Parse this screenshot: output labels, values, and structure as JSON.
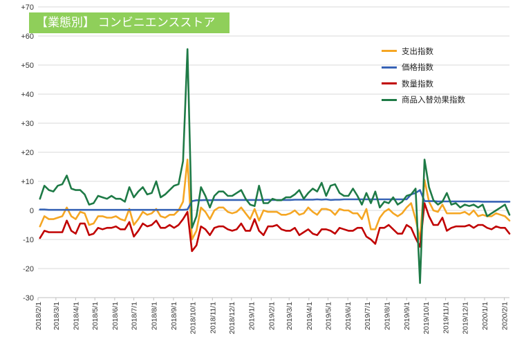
{
  "chart_data": {
    "type": "line",
    "title": "【業態別】 コンビニエンスストア",
    "xlabel": "",
    "ylabel": "",
    "ylim": [
      -30,
      70
    ],
    "yticks": [
      -30,
      -20,
      -10,
      0,
      10,
      20,
      30,
      40,
      50,
      60,
      70
    ],
    "ytick_labels": [
      "-30",
      "-20",
      "-10",
      "0",
      "+10",
      "+20",
      "+30",
      "+40",
      "+50",
      "+60",
      "+70"
    ],
    "xlim": [
      "2018-02-01",
      "2020-02-09"
    ],
    "xtick_labels": [
      "2018/2/1",
      "2018/3/1",
      "2018/4/1",
      "2018/5/1",
      "2018/6/1",
      "2018/7/1",
      "2018/8/1",
      "2018/9/1",
      "2018/10/1",
      "2018/11/1",
      "2018/12/1",
      "2019/1/1",
      "2019/2/1",
      "2019/3/1",
      "2019/4/1",
      "2019/5/1",
      "2019/6/1",
      "2019/7/1",
      "2019/8/1",
      "2019/9/1",
      "2019/10/1",
      "2019/11/1",
      "2019/12/1",
      "2020/1/1",
      "2020/2/1"
    ],
    "grid": "horizontal",
    "legend_position": "top-right",
    "x": [
      "2018-02-04",
      "2018-02-11",
      "2018-02-18",
      "2018-02-25",
      "2018-03-04",
      "2018-03-11",
      "2018-03-18",
      "2018-03-25",
      "2018-04-01",
      "2018-04-08",
      "2018-04-15",
      "2018-04-22",
      "2018-04-29",
      "2018-05-06",
      "2018-05-13",
      "2018-05-20",
      "2018-05-27",
      "2018-06-03",
      "2018-06-10",
      "2018-06-17",
      "2018-06-24",
      "2018-07-01",
      "2018-07-08",
      "2018-07-15",
      "2018-07-22",
      "2018-07-29",
      "2018-08-05",
      "2018-08-12",
      "2018-08-19",
      "2018-08-26",
      "2018-09-02",
      "2018-09-09",
      "2018-09-16",
      "2018-09-23",
      "2018-09-30",
      "2018-10-07",
      "2018-10-14",
      "2018-10-21",
      "2018-10-28",
      "2018-11-04",
      "2018-11-11",
      "2018-11-18",
      "2018-11-25",
      "2018-12-02",
      "2018-12-09",
      "2018-12-16",
      "2018-12-23",
      "2018-12-30",
      "2019-01-06",
      "2019-01-13",
      "2019-01-20",
      "2019-01-27",
      "2019-02-03",
      "2019-02-10",
      "2019-02-17",
      "2019-02-24",
      "2019-03-03",
      "2019-03-10",
      "2019-03-17",
      "2019-03-24",
      "2019-03-31",
      "2019-04-07",
      "2019-04-14",
      "2019-04-21",
      "2019-04-28",
      "2019-05-05",
      "2019-05-12",
      "2019-05-19",
      "2019-05-26",
      "2019-06-02",
      "2019-06-09",
      "2019-06-16",
      "2019-06-23",
      "2019-06-30",
      "2019-07-07",
      "2019-07-14",
      "2019-07-21",
      "2019-07-28",
      "2019-08-04",
      "2019-08-11",
      "2019-08-18",
      "2019-08-25",
      "2019-09-01",
      "2019-09-08",
      "2019-09-15",
      "2019-09-22",
      "2019-09-29",
      "2019-10-06",
      "2019-10-13",
      "2019-10-20",
      "2019-10-27",
      "2019-11-03",
      "2019-11-10",
      "2019-11-17",
      "2019-11-24",
      "2019-12-01",
      "2019-12-08",
      "2019-12-15",
      "2019-12-22",
      "2019-12-29",
      "2020-01-05",
      "2020-01-12",
      "2020-01-19",
      "2020-01-26",
      "2020-02-02",
      "2020-02-09"
    ],
    "series": [
      {
        "name": "支出指数",
        "color": "#f5a623",
        "values": [
          -5.5,
          -2,
          -3,
          -3,
          -2.5,
          -2,
          1,
          -2,
          -3,
          -0.5,
          -1,
          -5,
          -4.5,
          -2,
          -2,
          -2.5,
          -2.5,
          -2,
          -3,
          -3.5,
          0.5,
          -5,
          -3,
          -0.5,
          -1.5,
          -1,
          0.5,
          -2,
          -2.5,
          -1.5,
          -1.5,
          0,
          3,
          17.5,
          -10,
          -7,
          1,
          -0.5,
          -3,
          0,
          1,
          1,
          -0.5,
          -1,
          -0.5,
          1,
          -1,
          -3,
          0.5,
          -3.5,
          0,
          -0.5,
          -0.5,
          -0.5,
          -1.5,
          -1.5,
          -1,
          0,
          -1.5,
          -1,
          1,
          -0.5,
          -1.5,
          0.5,
          0.5,
          0,
          -1.5,
          0.5,
          0,
          0,
          -1,
          -1,
          -3,
          0.5,
          -6.5,
          -6.5,
          -2.5,
          -0.5,
          0.5,
          -1,
          -2,
          -1,
          1,
          2.5,
          -3,
          -10,
          10.5,
          3,
          0,
          -0.5,
          2,
          -1,
          -1,
          -1,
          -1,
          -0.5,
          -1.5,
          0,
          -2,
          -1.5,
          -2,
          -2,
          -1,
          -1.5,
          -2,
          -3.5
        ]
      },
      {
        "name": "価格指数",
        "color": "#3763b5",
        "values": [
          0.3,
          0.3,
          0.2,
          0.2,
          0.2,
          0.2,
          0.2,
          0.2,
          0.2,
          0.2,
          0.2,
          0.2,
          0.2,
          0.2,
          0.2,
          0.2,
          0.2,
          0.2,
          0.2,
          0.2,
          0.2,
          0.2,
          0.2,
          0.2,
          0.2,
          0.2,
          0.2,
          0.2,
          0.2,
          0.2,
          0.2,
          0.2,
          0.2,
          0.3,
          3.2,
          3.5,
          3.5,
          3.6,
          3.5,
          3.6,
          3.6,
          3.6,
          3.6,
          3.6,
          3.6,
          3.6,
          3.6,
          3.6,
          3.6,
          3.6,
          3.6,
          3.7,
          3.6,
          3.6,
          3.6,
          3.6,
          3.6,
          3.7,
          3.7,
          3.7,
          3.7,
          3.7,
          3.8,
          3.7,
          3.8,
          3.6,
          3.7,
          3.7,
          3.8,
          3.8,
          3.8,
          3.8,
          3.8,
          3.8,
          3.8,
          3.8,
          3.8,
          3.8,
          3.8,
          3.8,
          3.8,
          3.8,
          3.8,
          5.5,
          6,
          7,
          3.2,
          3.2,
          3.2,
          3.1,
          3.1,
          3.1,
          3.1,
          3.1,
          3.1,
          3.1,
          3.1,
          3.1,
          3.1,
          3,
          3,
          3,
          3,
          3,
          3,
          3
        ]
      },
      {
        "name": "数量指数",
        "color": "#c00000",
        "values": [
          -9.5,
          -7,
          -7.5,
          -7.5,
          -7.5,
          -7.5,
          -3.5,
          -7,
          -8,
          -4.5,
          -4.5,
          -8.5,
          -8,
          -6,
          -6.5,
          -6,
          -6,
          -5.5,
          -6.5,
          -6.5,
          -4,
          -9,
          -7,
          -4.5,
          -5.5,
          -5,
          -3.5,
          -6,
          -6,
          -5,
          -6,
          -5,
          -3,
          -0.5,
          -14,
          -12,
          -5.5,
          -6.5,
          -8.5,
          -6,
          -5.5,
          -5.5,
          -6.5,
          -7,
          -6.5,
          -4.5,
          -7,
          -7,
          -3,
          -7,
          -8.5,
          -5.5,
          -5.5,
          -5,
          -6.5,
          -7,
          -7,
          -6,
          -8.5,
          -7.5,
          -6.5,
          -8,
          -8.5,
          -6.5,
          -6.5,
          -7,
          -8,
          -6,
          -6.5,
          -7,
          -7,
          -6,
          -6,
          -9,
          -10,
          -11.5,
          -6,
          -6,
          -5,
          -6.5,
          -8,
          -8,
          -5,
          -6,
          -9.5,
          -12.5,
          2.5,
          -2,
          -5,
          -5,
          -2.5,
          -7,
          -6,
          -5.5,
          -5.5,
          -5.5,
          -5,
          -6,
          -5,
          -5,
          -6,
          -6.5,
          -5.5,
          -6,
          -6,
          -8
        ]
      },
      {
        "name": "商品入替効果指数",
        "color": "#1e7a46",
        "values": [
          4,
          8.5,
          7,
          6.5,
          8.5,
          9,
          12,
          7.5,
          7,
          7,
          5.5,
          2,
          2.5,
          5,
          4.5,
          4,
          5,
          4,
          4,
          3,
          8,
          4.5,
          6.5,
          8,
          5.5,
          6,
          10,
          4.5,
          5.5,
          7,
          8.5,
          9,
          17,
          55.5,
          -6,
          -2,
          8,
          5,
          1,
          5,
          6.5,
          6.5,
          5,
          5,
          6,
          7,
          4,
          2,
          1.5,
          8.5,
          2.5,
          2.5,
          4,
          3.5,
          3.5,
          4.5,
          4.5,
          5.5,
          7,
          4,
          6,
          7.5,
          6.5,
          9.5,
          5,
          8.5,
          9,
          6,
          5,
          5,
          7.5,
          5,
          2,
          6,
          2.5,
          6.5,
          1,
          3,
          2.5,
          4.5,
          2,
          3,
          5,
          5.5,
          7.5,
          -25,
          17.5,
          8,
          3.5,
          2,
          3,
          6,
          2,
          2.5,
          1,
          2,
          1.5,
          2,
          1,
          2,
          -2,
          -1,
          0,
          1,
          2,
          -1.5
        ]
      }
    ]
  }
}
